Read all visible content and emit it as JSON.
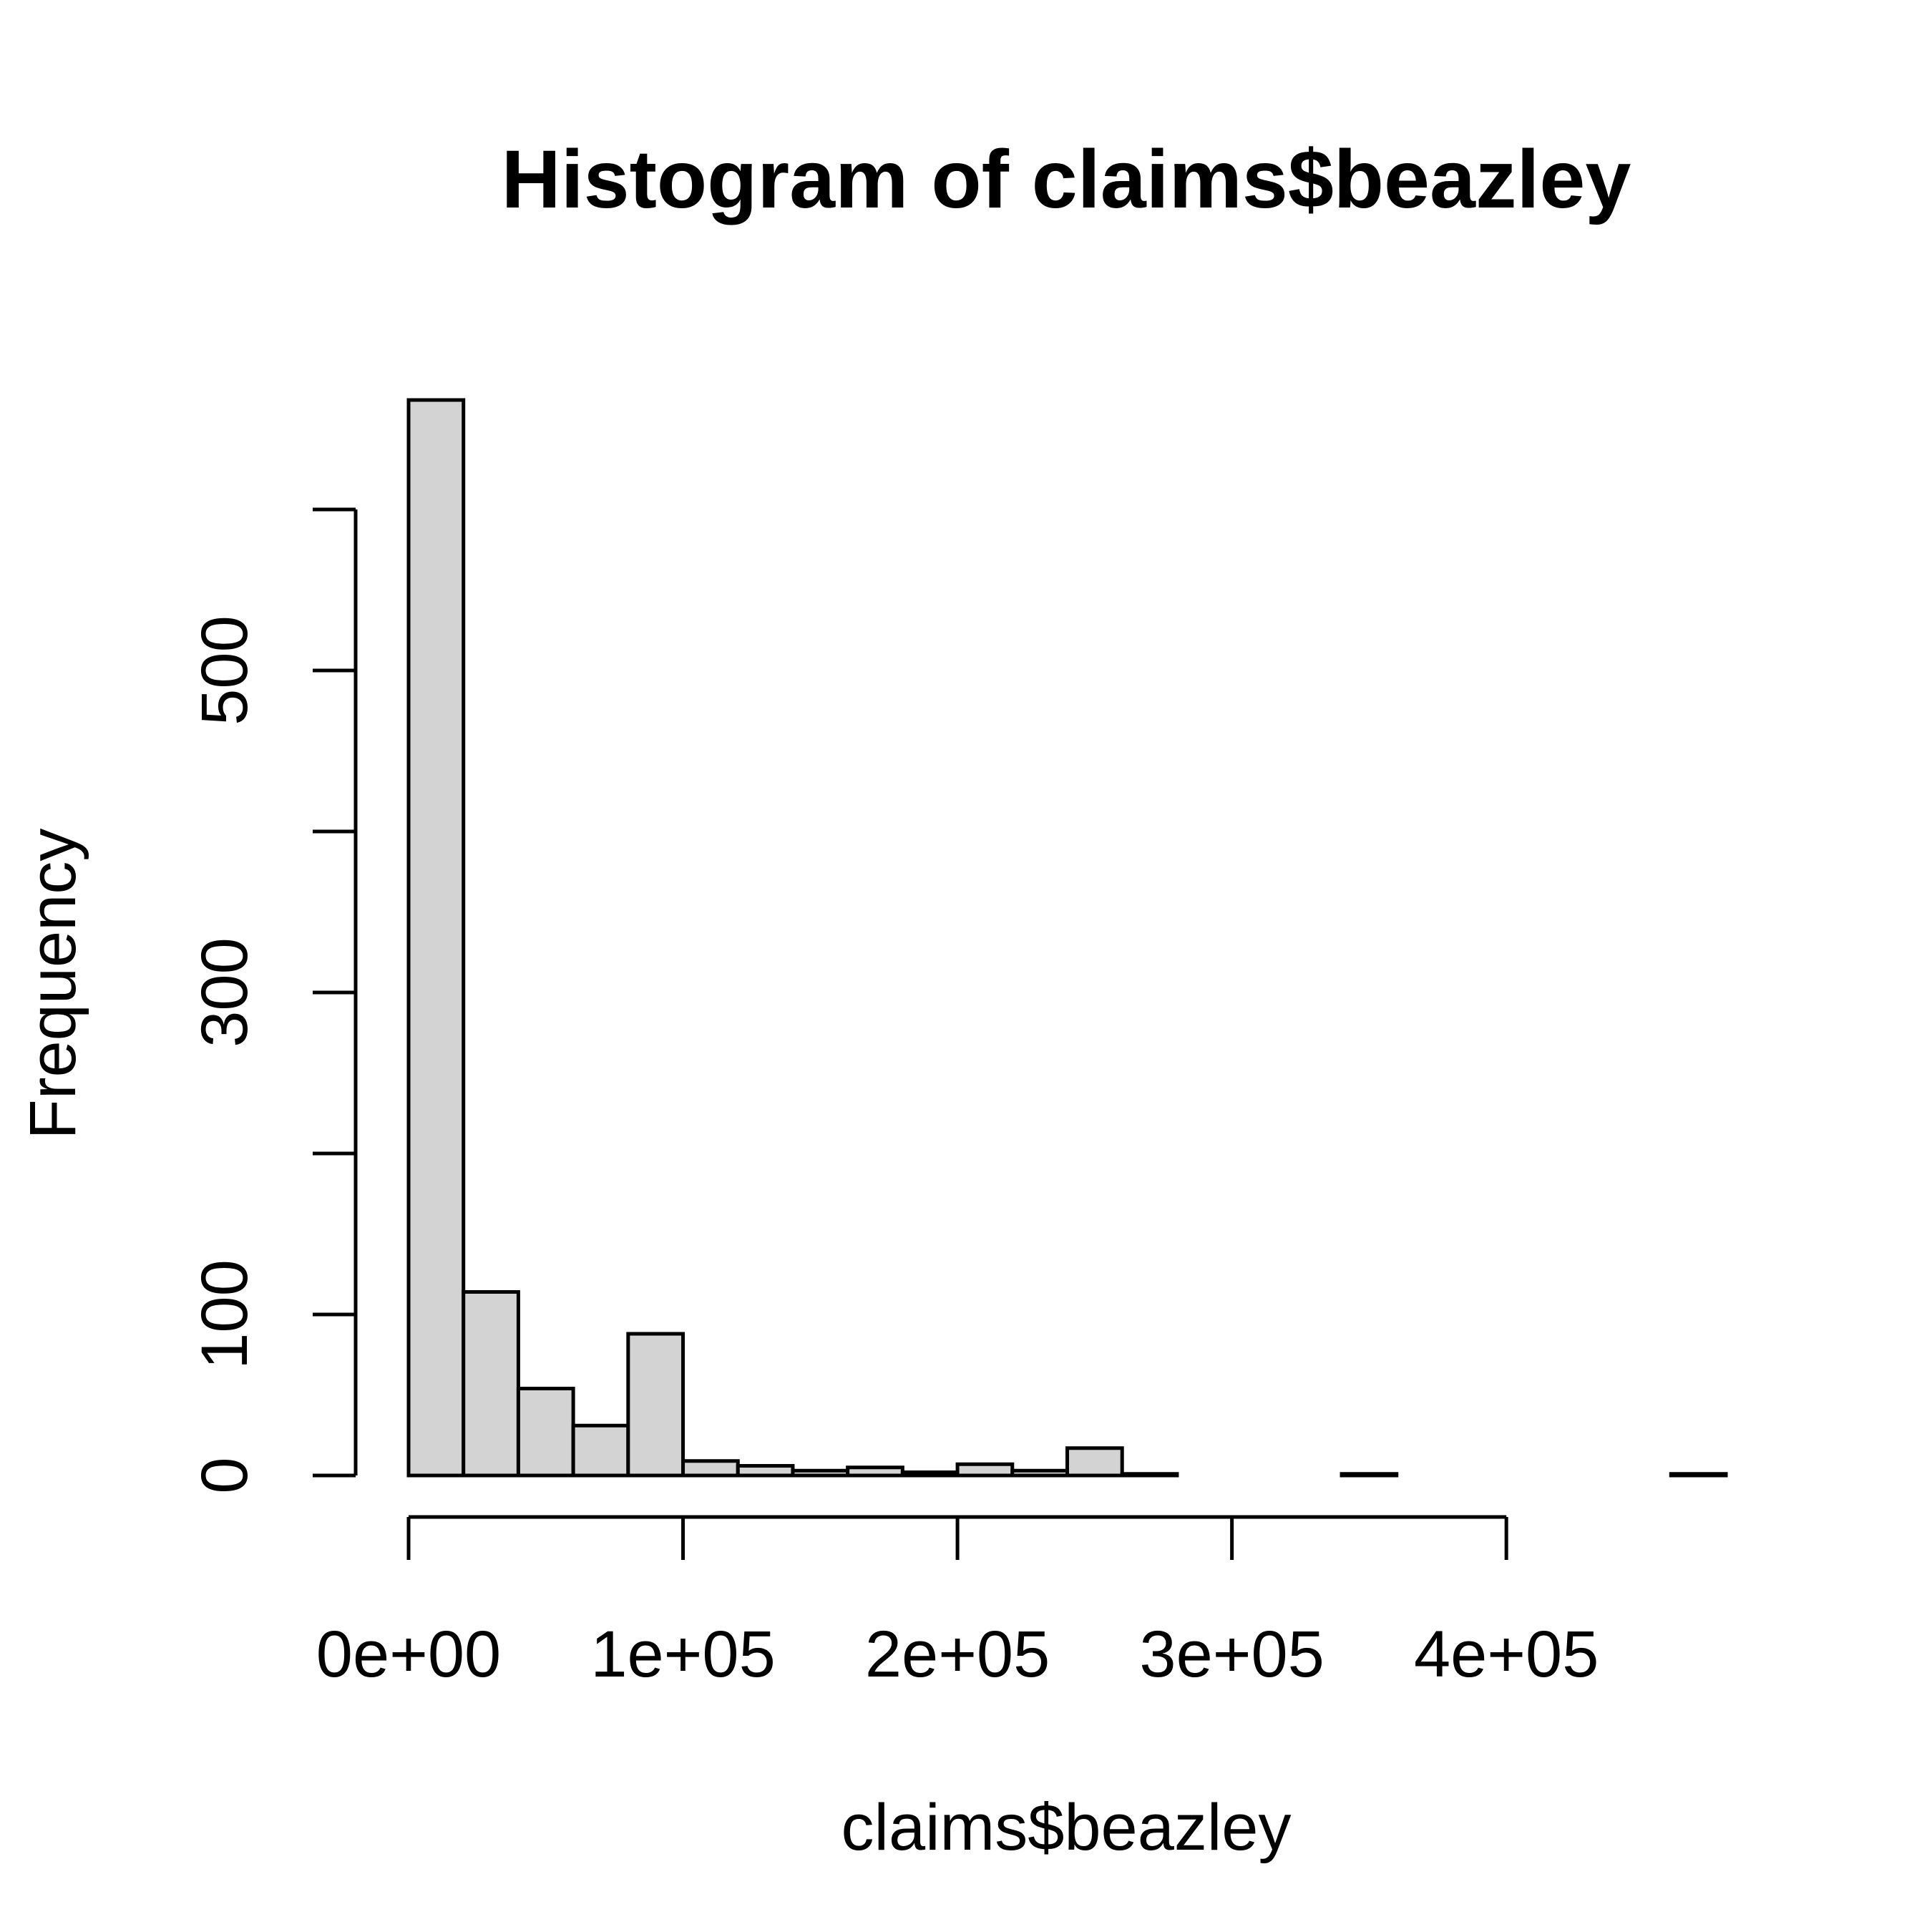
{
  "chart_data": {
    "type": "bar",
    "title": "Histogram of claims$beazley",
    "xlabel": "claims$beazley",
    "ylabel": "Frequency",
    "xlim": [
      0,
      480000
    ],
    "ylim": [
      0,
      668
    ],
    "bin_width": 20000,
    "x_ticks": [
      {
        "value": 0,
        "label": "0e+00"
      },
      {
        "value": 100000,
        "label": "1e+05"
      },
      {
        "value": 200000,
        "label": "2e+05"
      },
      {
        "value": 300000,
        "label": "3e+05"
      },
      {
        "value": 400000,
        "label": "4e+05"
      }
    ],
    "y_ticks": [
      {
        "value": 0,
        "label": "0"
      },
      {
        "value": 100,
        "label": "100"
      },
      {
        "value": 200,
        "label": ""
      },
      {
        "value": 300,
        "label": "300"
      },
      {
        "value": 400,
        "label": ""
      },
      {
        "value": 500,
        "label": "500"
      },
      {
        "value": 600,
        "label": ""
      }
    ],
    "bins": [
      {
        "x0": 0,
        "x1": 20000,
        "value": 668
      },
      {
        "x0": 20000,
        "x1": 40000,
        "value": 114
      },
      {
        "x0": 40000,
        "x1": 60000,
        "value": 54
      },
      {
        "x0": 60000,
        "x1": 80000,
        "value": 31
      },
      {
        "x0": 80000,
        "x1": 100000,
        "value": 88
      },
      {
        "x0": 100000,
        "x1": 120000,
        "value": 9
      },
      {
        "x0": 120000,
        "x1": 140000,
        "value": 6
      },
      {
        "x0": 140000,
        "x1": 160000,
        "value": 3
      },
      {
        "x0": 160000,
        "x1": 180000,
        "value": 5
      },
      {
        "x0": 180000,
        "x1": 200000,
        "value": 2
      },
      {
        "x0": 200000,
        "x1": 220000,
        "value": 7
      },
      {
        "x0": 220000,
        "x1": 240000,
        "value": 3
      },
      {
        "x0": 240000,
        "x1": 260000,
        "value": 17
      },
      {
        "x0": 260000,
        "x1": 280000,
        "value": 1
      },
      {
        "x0": 280000,
        "x1": 300000,
        "value": 0
      },
      {
        "x0": 300000,
        "x1": 320000,
        "value": 0
      },
      {
        "x0": 320000,
        "x1": 340000,
        "value": 0
      },
      {
        "x0": 340000,
        "x1": 360000,
        "value": 1
      },
      {
        "x0": 360000,
        "x1": 380000,
        "value": 0
      },
      {
        "x0": 380000,
        "x1": 400000,
        "value": 0
      },
      {
        "x0": 400000,
        "x1": 420000,
        "value": 0
      },
      {
        "x0": 420000,
        "x1": 440000,
        "value": 0
      },
      {
        "x0": 440000,
        "x1": 460000,
        "value": 0
      },
      {
        "x0": 460000,
        "x1": 480000,
        "value": 1
      }
    ]
  }
}
